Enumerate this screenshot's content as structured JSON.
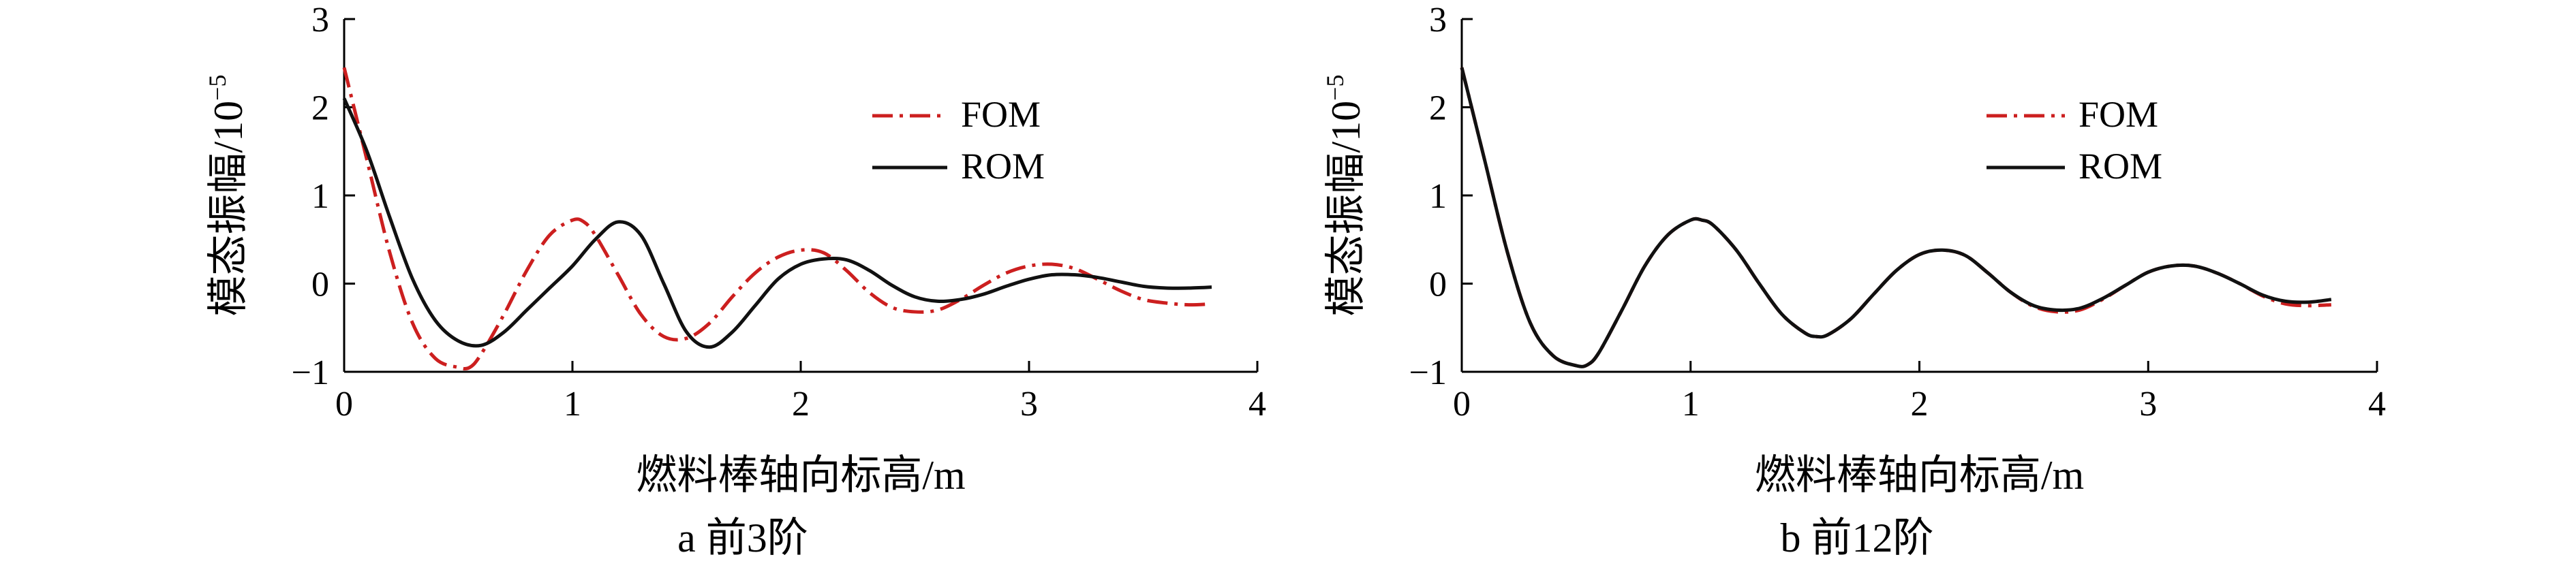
{
  "panels": [
    {
      "chart_data": {
        "type": "line",
        "caption": "a  前3阶",
        "xlabel": "燃料棒轴向标高/m",
        "ylabel": "模态振幅/10",
        "ylabel_exponent": "−5",
        "xlim": [
          0,
          4
        ],
        "ylim": [
          -1,
          3
        ],
        "xticks": [
          "0",
          "1",
          "2",
          "3",
          "4"
        ],
        "yticks": [
          "−1",
          "0",
          "1",
          "2",
          "3"
        ],
        "grid": false,
        "legend_position": "upper-right",
        "series": [
          {
            "name": "FOM",
            "color": "#cc1f1f",
            "dash": "dashdot",
            "x": [
              0.0,
              0.1,
              0.2,
              0.3,
              0.4,
              0.5,
              0.55,
              0.6,
              0.7,
              0.8,
              0.9,
              1.0,
              1.05,
              1.1,
              1.2,
              1.3,
              1.4,
              1.5,
              1.6,
              1.7,
              1.8,
              1.9,
              2.0,
              2.1,
              2.2,
              2.3,
              2.4,
              2.5,
              2.6,
              2.7,
              2.8,
              2.9,
              3.0,
              3.1,
              3.2,
              3.3,
              3.4,
              3.5,
              3.6,
              3.7,
              3.8
            ],
            "y": [
              2.45,
              1.4,
              0.35,
              -0.45,
              -0.85,
              -0.95,
              -0.95,
              -0.8,
              -0.35,
              0.15,
              0.55,
              0.72,
              0.7,
              0.55,
              0.1,
              -0.35,
              -0.6,
              -0.62,
              -0.45,
              -0.15,
              0.12,
              0.3,
              0.38,
              0.35,
              0.15,
              -0.1,
              -0.27,
              -0.32,
              -0.3,
              -0.18,
              -0.02,
              0.12,
              0.2,
              0.22,
              0.17,
              0.05,
              -0.08,
              -0.18,
              -0.22,
              -0.24,
              -0.23
            ]
          },
          {
            "name": "ROM",
            "color": "#111111",
            "dash": "solid",
            "x": [
              0.0,
              0.1,
              0.2,
              0.3,
              0.4,
              0.5,
              0.6,
              0.7,
              0.8,
              0.9,
              1.0,
              1.1,
              1.2,
              1.3,
              1.4,
              1.5,
              1.6,
              1.7,
              1.8,
              1.9,
              2.0,
              2.1,
              2.2,
              2.3,
              2.4,
              2.5,
              2.6,
              2.7,
              2.8,
              2.9,
              3.0,
              3.1,
              3.2,
              3.3,
              3.4,
              3.5,
              3.6,
              3.7,
              3.8
            ],
            "y": [
              2.1,
              1.5,
              0.75,
              0.05,
              -0.42,
              -0.65,
              -0.7,
              -0.55,
              -0.3,
              -0.05,
              0.2,
              0.5,
              0.7,
              0.55,
              0.0,
              -0.55,
              -0.72,
              -0.55,
              -0.25,
              0.05,
              0.22,
              0.28,
              0.27,
              0.15,
              -0.02,
              -0.15,
              -0.2,
              -0.18,
              -0.12,
              -0.03,
              0.05,
              0.1,
              0.1,
              0.07,
              0.02,
              -0.03,
              -0.05,
              -0.05,
              -0.04
            ]
          }
        ]
      }
    },
    {
      "chart_data": {
        "type": "line",
        "caption": "b  前12阶",
        "xlabel": "燃料棒轴向标高/m",
        "ylabel": "模态振幅/10",
        "ylabel_exponent": "−5",
        "xlim": [
          0,
          4
        ],
        "ylim": [
          -1,
          3
        ],
        "xticks": [
          "0",
          "1",
          "2",
          "3",
          "4"
        ],
        "yticks": [
          "−1",
          "0",
          "1",
          "2",
          "3"
        ],
        "grid": false,
        "legend_position": "upper-right",
        "series": [
          {
            "name": "FOM",
            "color": "#cc1f1f",
            "dash": "dashdot",
            "x": [
              0.0,
              0.1,
              0.2,
              0.3,
              0.4,
              0.5,
              0.55,
              0.6,
              0.7,
              0.8,
              0.9,
              1.0,
              1.05,
              1.1,
              1.2,
              1.3,
              1.4,
              1.5,
              1.55,
              1.6,
              1.7,
              1.8,
              1.9,
              2.0,
              2.1,
              2.2,
              2.3,
              2.4,
              2.5,
              2.6,
              2.7,
              2.8,
              2.9,
              3.0,
              3.1,
              3.2,
              3.3,
              3.4,
              3.5,
              3.6,
              3.7,
              3.8
            ],
            "y": [
              2.45,
              1.4,
              0.35,
              -0.45,
              -0.82,
              -0.93,
              -0.92,
              -0.78,
              -0.3,
              0.2,
              0.55,
              0.72,
              0.72,
              0.66,
              0.38,
              0.0,
              -0.35,
              -0.56,
              -0.6,
              -0.58,
              -0.4,
              -0.12,
              0.15,
              0.33,
              0.38,
              0.32,
              0.12,
              -0.1,
              -0.26,
              -0.32,
              -0.3,
              -0.18,
              -0.02,
              0.13,
              0.2,
              0.2,
              0.12,
              0.0,
              -0.14,
              -0.23,
              -0.25,
              -0.24
            ]
          },
          {
            "name": "ROM",
            "color": "#111111",
            "dash": "solid",
            "x": [
              0.0,
              0.1,
              0.2,
              0.3,
              0.4,
              0.5,
              0.55,
              0.6,
              0.7,
              0.8,
              0.9,
              1.0,
              1.05,
              1.1,
              1.2,
              1.3,
              1.4,
              1.5,
              1.55,
              1.6,
              1.7,
              1.8,
              1.9,
              2.0,
              2.1,
              2.2,
              2.3,
              2.4,
              2.5,
              2.6,
              2.7,
              2.8,
              2.9,
              3.0,
              3.1,
              3.2,
              3.3,
              3.4,
              3.5,
              3.6,
              3.7,
              3.8
            ],
            "y": [
              2.45,
              1.4,
              0.35,
              -0.45,
              -0.82,
              -0.93,
              -0.92,
              -0.78,
              -0.3,
              0.2,
              0.55,
              0.72,
              0.72,
              0.66,
              0.38,
              0.0,
              -0.35,
              -0.56,
              -0.6,
              -0.58,
              -0.4,
              -0.12,
              0.15,
              0.33,
              0.38,
              0.32,
              0.12,
              -0.1,
              -0.25,
              -0.3,
              -0.28,
              -0.17,
              -0.02,
              0.13,
              0.2,
              0.2,
              0.12,
              0.0,
              -0.13,
              -0.2,
              -0.21,
              -0.18
            ]
          }
        ]
      }
    }
  ]
}
